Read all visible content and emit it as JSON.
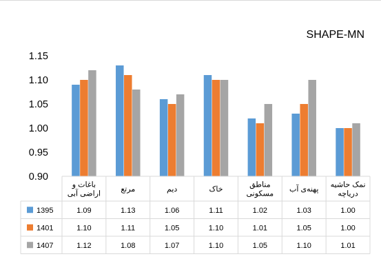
{
  "chart_data": {
    "type": "bar",
    "title": "SHAPE-MN",
    "categories": [
      [
        "باغات و",
        "اراضی آبی"
      ],
      [
        "مرتع"
      ],
      [
        "دیم"
      ],
      [
        "خاک"
      ],
      [
        "مناطق",
        "مسکونی"
      ],
      [
        "پهنه‌ی آب"
      ],
      [
        "نمک حاشیه",
        "دریاچه"
      ]
    ],
    "series": [
      {
        "name": "1395",
        "color": "#5b9bd5",
        "values": [
          1.09,
          1.13,
          1.06,
          1.11,
          1.02,
          1.03,
          1.0
        ],
        "labels": [
          "1.09",
          "1.13",
          "1.06",
          "1.11",
          "1.02",
          "1.03",
          "1.00"
        ]
      },
      {
        "name": "1401",
        "color": "#ed7d31",
        "values": [
          1.1,
          1.11,
          1.05,
          1.1,
          1.01,
          1.05,
          1.0
        ],
        "labels": [
          "1.10",
          "1.11",
          "1.05",
          "1.10",
          "1.01",
          "1.05",
          "1.00"
        ]
      },
      {
        "name": "1407",
        "color": "#a5a5a5",
        "values": [
          1.12,
          1.08,
          1.07,
          1.1,
          1.05,
          1.1,
          1.01
        ],
        "labels": [
          "1.12",
          "1.08",
          "1.07",
          "1.10",
          "1.05",
          "1.10",
          "1.01"
        ]
      }
    ],
    "ylim": [
      0.9,
      1.15
    ],
    "yticks": [
      "0.90",
      "0.95",
      "1.00",
      "1.05",
      "1.10",
      "1.15"
    ],
    "grid": false,
    "legend": "data-table"
  }
}
